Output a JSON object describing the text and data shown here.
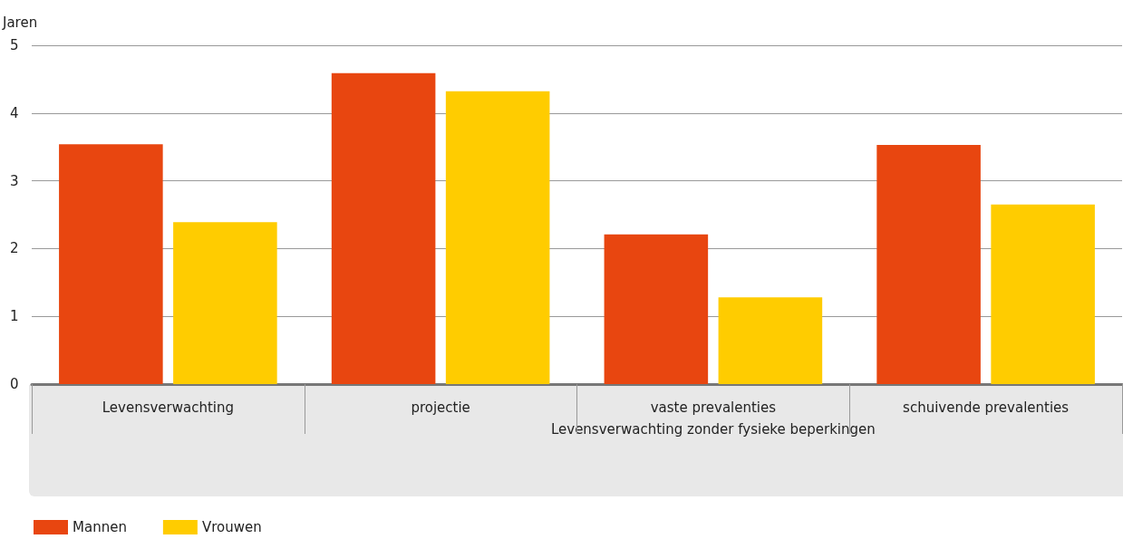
{
  "chart_data": {
    "type": "bar",
    "ylabel": "Jaren",
    "xlabel": "Levensverwachting zonder fysieke beperkingen",
    "categories": [
      "Levensverwachting",
      "projectie",
      "vaste prevalenties",
      "schuivende prevalenties"
    ],
    "series": [
      {
        "name": "Mannen",
        "color": "#e84610",
        "values": [
          3.54,
          4.59,
          2.21,
          3.53
        ]
      },
      {
        "name": "Vrouwen",
        "color": "#ffcc00",
        "values": [
          2.39,
          4.32,
          1.28,
          2.65
        ]
      }
    ],
    "ylim": [
      0,
      5
    ],
    "yticks": [
      0,
      1,
      2,
      3,
      4,
      5
    ],
    "grid": "y",
    "legend": "bottom left"
  }
}
